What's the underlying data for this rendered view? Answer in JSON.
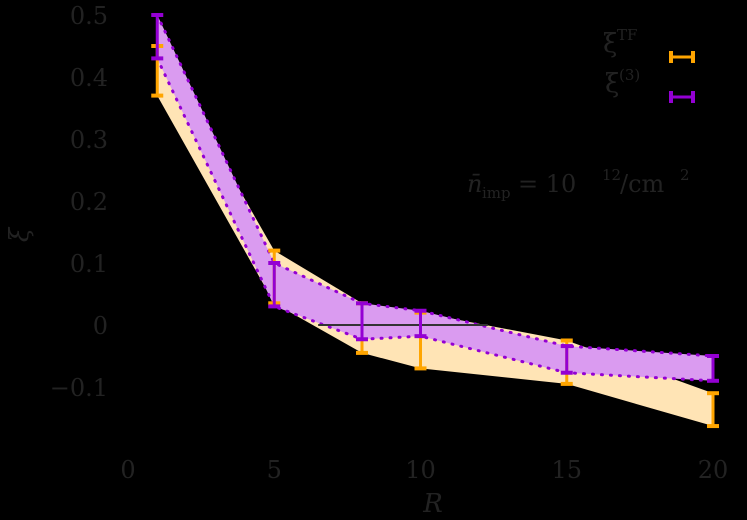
{
  "chart_data": {
    "type": "line",
    "title": "",
    "xlabel": "R",
    "ylabel": "ξ",
    "xlim": [
      0,
      20
    ],
    "ylim": [
      -0.2,
      0.5
    ],
    "x_ticks": [
      "0",
      "5",
      "10",
      "15",
      "20"
    ],
    "y_ticks": [
      "0.5",
      "0.4",
      "0.3",
      "0.2",
      "0.1",
      "0",
      "−0.1"
    ],
    "grid": false,
    "legend_position": "upper right",
    "annotation": "n̄_imp = 10^12/cm^2",
    "zero_line": {
      "x_from": 6.5,
      "x_to": 12.3,
      "y": 0
    },
    "x": [
      1,
      5,
      8,
      10,
      15,
      20
    ],
    "series": [
      {
        "name": "ξ^TF",
        "color": "#FFA500",
        "fill_color": "#FFE4B5",
        "style": "errorbar-band",
        "lower": [
          0.37,
          0.035,
          -0.045,
          -0.07,
          -0.095,
          -0.163
        ],
        "upper": [
          0.45,
          0.12,
          0.035,
          0.02,
          -0.025,
          -0.11
        ]
      },
      {
        "name": "ξ^(3)",
        "color": "#9400D3",
        "fill_color": "#DA9BF0",
        "style": "errorbar-band-dotted",
        "lower": [
          0.43,
          0.03,
          -0.023,
          -0.018,
          -0.077,
          -0.09
        ],
        "upper": [
          0.5,
          0.1,
          0.035,
          0.023,
          -0.034,
          -0.05
        ]
      }
    ]
  },
  "legend": {
    "items": [
      {
        "symbol": "ξ",
        "sup": "TF",
        "color": "#FFA500"
      },
      {
        "symbol": "ξ",
        "sup": "(3)",
        "color": "#9400D3"
      }
    ]
  },
  "annotation": {
    "lhs": "n̄",
    "lhs_sub": "imp",
    "eq": " = 10",
    "exp": "12",
    "unit": "/cm",
    "unit_exp": "2"
  },
  "axes": {
    "xlabel": "R",
    "ylabel": "ξ"
  }
}
